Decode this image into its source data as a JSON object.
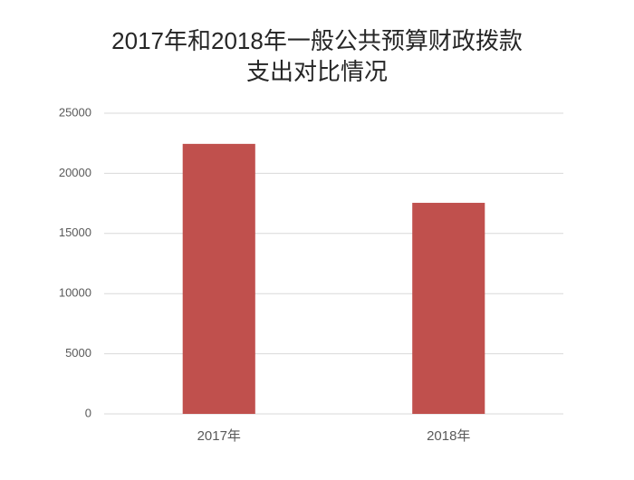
{
  "chart_data": {
    "type": "bar",
    "title": "2017年和2018年一般公共预算财政拨款支出对比情况",
    "categories": [
      "2017年",
      "2018年"
    ],
    "values": [
      22450,
      17550
    ],
    "color": "#c0504d",
    "ylim": [
      0,
      25000
    ],
    "yticks": [
      0,
      5000,
      10000,
      15000,
      20000,
      25000
    ],
    "grid": true
  }
}
